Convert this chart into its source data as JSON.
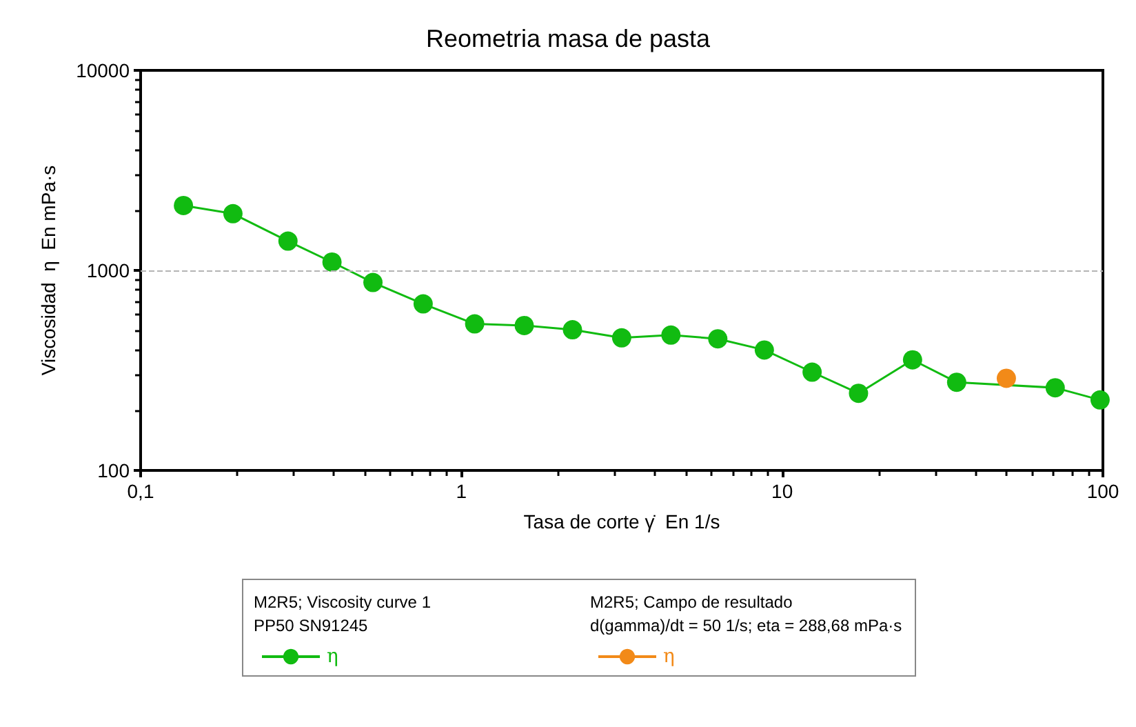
{
  "chart_data": {
    "type": "line",
    "title": "Reometria masa de pasta",
    "xlabel": "Tasa de corte γ̇  En 1/s",
    "ylabel": "Viscosidad  η  En mPa·s",
    "log": "xy",
    "xlim": [
      0.1,
      100
    ],
    "ylim": [
      100,
      10000
    ],
    "xticks": [
      {
        "value": 0.1,
        "label": "0,1"
      },
      1,
      10,
      100
    ],
    "yticks": [
      100,
      1000,
      10000
    ],
    "grid": false,
    "legend": "bottom",
    "marker": "circle",
    "line_style": "solid",
    "ref_lines": [
      {
        "axis": "y",
        "value": 1000,
        "color": "#b4b4b4",
        "line_style": "dashed"
      }
    ],
    "annotations": [
      "M2R5; Viscosity curve 1\nPP50 SN91245",
      "M2R5; Campo de resultado\nd(gamma)/dt = 50 1/s; eta = 288,68 mPa·s"
    ],
    "series": [
      {
        "name": "η",
        "color": "#11bb11",
        "x": [
          0.136,
          0.194,
          0.288,
          0.395,
          0.53,
          0.76,
          1.1,
          1.57,
          2.22,
          3.16,
          4.5,
          6.3,
          8.8,
          12.4,
          17.3,
          25.5,
          35,
          50,
          71,
          98
        ],
        "values": [
          2110,
          1920,
          1400,
          1100,
          870,
          680,
          540,
          530,
          505,
          460,
          475,
          455,
          400,
          310,
          243,
          357,
          276,
          null,
          259,
          225
        ]
      },
      {
        "name": "η",
        "color": "#f28a18",
        "x": [
          50
        ],
        "values": [
          288.68
        ]
      }
    ]
  }
}
